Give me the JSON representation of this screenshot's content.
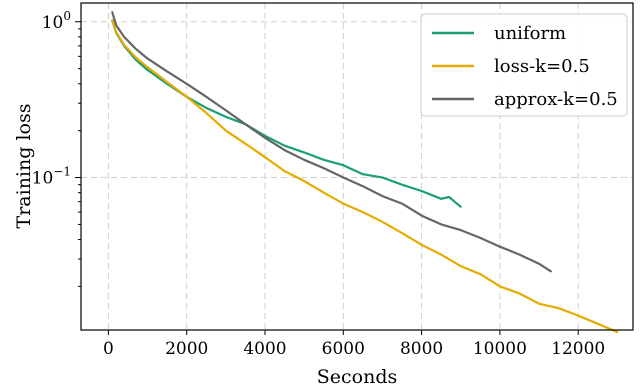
{
  "chart_data": {
    "type": "line",
    "title": "",
    "xlabel": "Seconds",
    "ylabel": "Training loss",
    "xlim": [
      -700,
      13400
    ],
    "ylim": [
      0.0105,
      1.32
    ],
    "yscale": "log",
    "grid": true,
    "legend_position": "top-right",
    "x_ticks": [
      0,
      2000,
      4000,
      6000,
      8000,
      10000,
      12000
    ],
    "x_tick_labels": [
      "0",
      "2000",
      "4000",
      "6000",
      "8000",
      "10000",
      "12000"
    ],
    "y_ticks": [
      1.0,
      0.1
    ],
    "y_tick_labels": [
      {
        "base": "10",
        "exp": "0"
      },
      {
        "base": "10",
        "exp": "−1"
      }
    ],
    "series": [
      {
        "name": "uniform",
        "color": "#1b9e77",
        "x": [
          100,
          200,
          400,
          700,
          1000,
          1500,
          2000,
          2500,
          3000,
          3500,
          4000,
          4500,
          5000,
          5500,
          6000,
          6500,
          7000,
          7500,
          8000,
          8500,
          8700,
          9000
        ],
        "y": [
          1.02,
          0.85,
          0.7,
          0.57,
          0.49,
          0.4,
          0.33,
          0.28,
          0.245,
          0.22,
          0.185,
          0.16,
          0.145,
          0.13,
          0.12,
          0.105,
          0.1,
          0.09,
          0.082,
          0.073,
          0.075,
          0.065
        ]
      },
      {
        "name": "loss-k=0.5",
        "color": "#e6ab02",
        "x": [
          100,
          200,
          400,
          700,
          1000,
          1500,
          2000,
          2500,
          3000,
          3500,
          4000,
          4500,
          5000,
          5500,
          6000,
          6500,
          7000,
          7500,
          8000,
          8500,
          9000,
          9500,
          10000,
          10500,
          11000,
          11500,
          12000,
          12500,
          13000
        ],
        "y": [
          1.02,
          0.86,
          0.71,
          0.59,
          0.51,
          0.41,
          0.33,
          0.26,
          0.2,
          0.165,
          0.135,
          0.11,
          0.095,
          0.08,
          0.068,
          0.06,
          0.052,
          0.044,
          0.037,
          0.032,
          0.027,
          0.024,
          0.02,
          0.018,
          0.0155,
          0.0145,
          0.013,
          0.0115,
          0.0102
        ]
      },
      {
        "name": "approx-k=0.5",
        "color": "#666666",
        "x": [
          100,
          200,
          400,
          700,
          1000,
          1500,
          2000,
          2500,
          3000,
          3500,
          4000,
          4500,
          5000,
          5500,
          6000,
          6500,
          7000,
          7500,
          8000,
          8500,
          9000,
          9500,
          10000,
          10500,
          11000,
          11300
        ],
        "y": [
          1.15,
          0.95,
          0.8,
          0.67,
          0.58,
          0.48,
          0.4,
          0.33,
          0.27,
          0.22,
          0.18,
          0.15,
          0.13,
          0.115,
          0.1,
          0.088,
          0.076,
          0.068,
          0.057,
          0.05,
          0.046,
          0.041,
          0.036,
          0.032,
          0.028,
          0.025
        ]
      }
    ]
  }
}
